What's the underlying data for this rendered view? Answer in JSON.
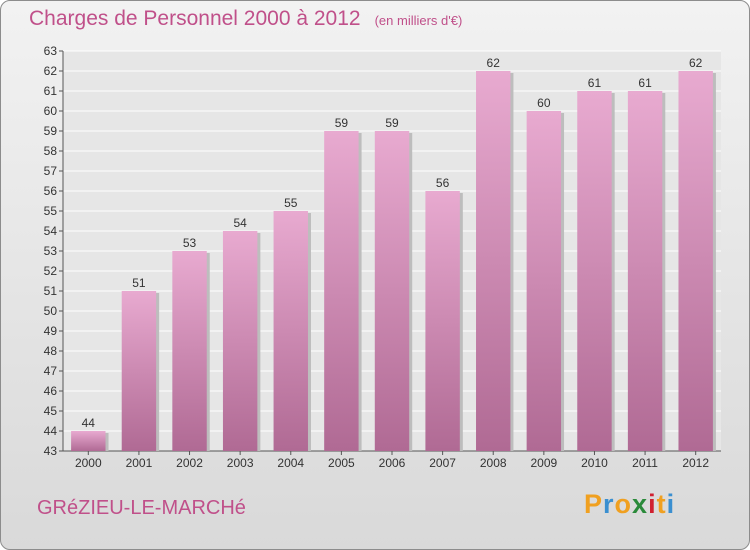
{
  "title": "Charges de Personnel 2000 à 2012",
  "subtitle": "(en milliers d'€)",
  "town": "GRéZIEU-LE-MARCHé",
  "logo": {
    "letters": [
      "P",
      "r",
      "o",
      "x",
      "i",
      "t",
      "i"
    ],
    "colors": [
      "#f0a020",
      "#3a8fd0",
      "#f0a020",
      "#2a8a3a",
      "#d02030",
      "#f0a020",
      "#3a8fd0"
    ]
  },
  "colors": {
    "accent": "#c0508a",
    "bar_light": "#e8aad0",
    "bar_dark": "#b06a94"
  },
  "chart_data": {
    "type": "bar",
    "categories": [
      "2000",
      "2001",
      "2002",
      "2003",
      "2004",
      "2005",
      "2006",
      "2007",
      "2008",
      "2009",
      "2010",
      "2011",
      "2012"
    ],
    "values": [
      44,
      51,
      53,
      54,
      55,
      59,
      59,
      56,
      62,
      60,
      61,
      61,
      62
    ],
    "ylim": [
      43,
      63
    ],
    "yticks": [
      43,
      44,
      45,
      46,
      47,
      48,
      49,
      50,
      51,
      52,
      53,
      54,
      55,
      56,
      57,
      58,
      59,
      60,
      61,
      62,
      63
    ],
    "grid": true,
    "xlabel": "",
    "ylabel": ""
  }
}
